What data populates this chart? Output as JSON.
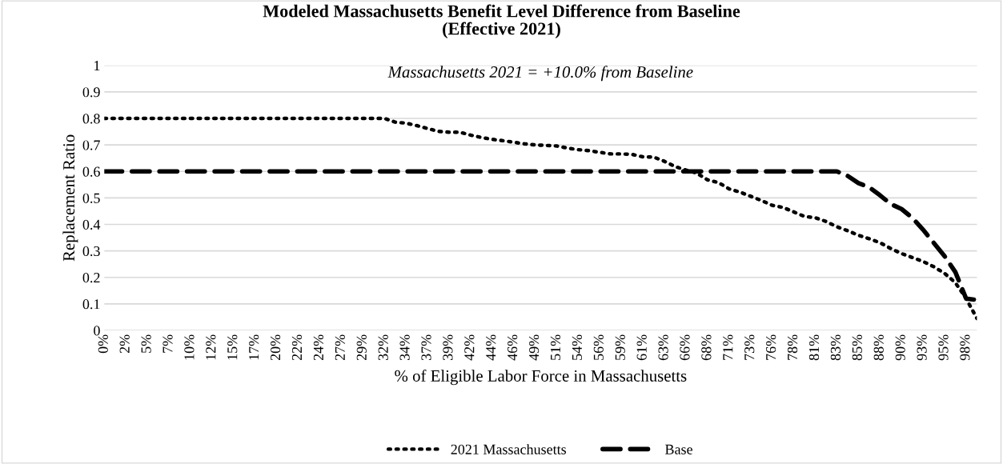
{
  "chart_data": {
    "type": "line",
    "title": "Modeled Massachusetts Benefit Level Difference from Baseline\n(Effective 2021)",
    "subtitle": "Massachusetts 2021 = +10.0% from Baseline",
    "xlabel": "% of Eligible Labor Force in Massachusetts",
    "ylabel": "Replacement Ratio",
    "categories": [
      "0%",
      null,
      "2%",
      null,
      "5%",
      null,
      "7%",
      null,
      "10%",
      null,
      "12%",
      null,
      "15%",
      null,
      "17%",
      null,
      "20%",
      null,
      "22%",
      null,
      "24%",
      null,
      "27%",
      null,
      "29%",
      null,
      "32%",
      null,
      "34%",
      null,
      "37%",
      null,
      "39%",
      null,
      "42%",
      null,
      "44%",
      null,
      "46%",
      null,
      "49%",
      null,
      "51%",
      null,
      "54%",
      null,
      "56%",
      null,
      "59%",
      null,
      "61%",
      null,
      "63%",
      null,
      "66%",
      null,
      "68%",
      null,
      "71%",
      null,
      "73%",
      null,
      "76%",
      null,
      "78%",
      null,
      "81%",
      null,
      "83%",
      null,
      "85%",
      null,
      "88%",
      null,
      "90%",
      null,
      "93%",
      null,
      "95%",
      null,
      "98%",
      null
    ],
    "series": [
      {
        "name": "2021 Massachusetts",
        "color": "#000000",
        "line_style": "dotted",
        "values": [
          0.8,
          0.8,
          0.8,
          0.8,
          0.8,
          0.8,
          0.8,
          0.8,
          0.8,
          0.8,
          0.8,
          0.8,
          0.8,
          0.8,
          0.8,
          0.8,
          0.8,
          0.8,
          0.8,
          0.8,
          0.8,
          0.8,
          0.8,
          0.8,
          0.8,
          0.8,
          0.8,
          0.786,
          0.782,
          0.773,
          0.762,
          0.751,
          0.748,
          0.748,
          0.737,
          0.728,
          0.721,
          0.716,
          0.71,
          0.704,
          0.7,
          0.698,
          0.696,
          0.688,
          0.682,
          0.678,
          0.672,
          0.666,
          0.666,
          0.664,
          0.655,
          0.654,
          0.638,
          0.618,
          0.605,
          0.593,
          0.568,
          0.558,
          0.534,
          0.522,
          0.506,
          0.49,
          0.472,
          0.464,
          0.447,
          0.43,
          0.425,
          0.411,
          0.391,
          0.376,
          0.359,
          0.346,
          0.331,
          0.309,
          0.29,
          0.275,
          0.26,
          0.24,
          0.215,
          0.18,
          0.12,
          0.045
        ]
      },
      {
        "name": "Base",
        "color": "#000000",
        "line_style": "dashed",
        "values": [
          0.6,
          0.6,
          0.6,
          0.6,
          0.6,
          0.6,
          0.6,
          0.6,
          0.6,
          0.6,
          0.6,
          0.6,
          0.6,
          0.6,
          0.6,
          0.6,
          0.6,
          0.6,
          0.6,
          0.6,
          0.6,
          0.6,
          0.6,
          0.6,
          0.6,
          0.6,
          0.6,
          0.6,
          0.6,
          0.6,
          0.6,
          0.6,
          0.6,
          0.6,
          0.6,
          0.6,
          0.6,
          0.6,
          0.6,
          0.6,
          0.6,
          0.6,
          0.6,
          0.6,
          0.6,
          0.6,
          0.6,
          0.6,
          0.6,
          0.6,
          0.6,
          0.6,
          0.6,
          0.6,
          0.6,
          0.6,
          0.6,
          0.6,
          0.6,
          0.6,
          0.6,
          0.6,
          0.6,
          0.6,
          0.6,
          0.6,
          0.6,
          0.6,
          0.6,
          0.583,
          0.556,
          0.54,
          0.51,
          0.477,
          0.458,
          0.425,
          0.38,
          0.33,
          0.28,
          0.22,
          0.12,
          0.115
        ]
      }
    ],
    "ylim": [
      0,
      1
    ],
    "yticks": [
      0,
      0.1,
      0.2,
      0.3,
      0.4,
      0.5,
      0.6,
      0.7,
      0.8,
      0.9,
      1
    ],
    "grid": "y",
    "legend": "bottom",
    "marker": "none"
  }
}
